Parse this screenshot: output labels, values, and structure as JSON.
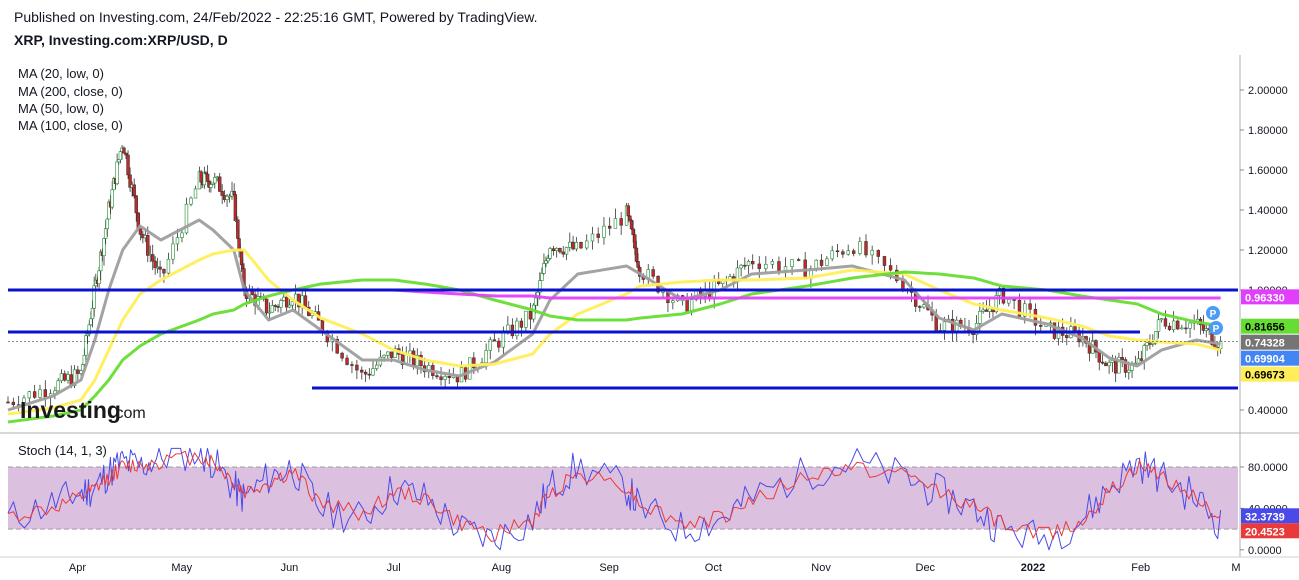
{
  "header": {
    "published": "Published on Investing.com, 24/Feb/2022 - 22:25:16 GMT, Powered by TradingView.",
    "symbol": "XRP, Investing.com:XRP/USD, D"
  },
  "watermark": {
    "text": "Investing",
    "suffix": ".com"
  },
  "legend": {
    "items": [
      {
        "label": "MA (20, low, 0)",
        "color": "#9e9e9e"
      },
      {
        "label": "MA (200, close, 0)",
        "color": "#e040fb"
      },
      {
        "label": "MA (50, low, 0)",
        "color": "#ffee58"
      },
      {
        "label": "MA (100, close, 0)",
        "color": "#66dd33"
      }
    ]
  },
  "stoch_label": "Stoch (14, 1, 3)",
  "colors": {
    "up": "#1b8a2e",
    "down": "#c62828",
    "level_line": "#0a12cc",
    "stoch_k": "#4a4ae8",
    "stoch_d": "#e83a3a",
    "stoch_band": "#dcc0e0",
    "ma20": "#9e9e9e",
    "ma50": "#ffee58",
    "ma100": "#66dd33",
    "ma200": "#e040fb"
  },
  "chart_data": [
    {
      "type": "line",
      "title": "XRP, Investing.com:XRP/USD, D",
      "x_axis": [
        "Apr",
        "May",
        "Jun",
        "Jul",
        "Aug",
        "Sep",
        "Oct",
        "Nov",
        "Dec",
        "2022",
        "Feb",
        "M"
      ],
      "y_ticks": [
        "2.00000",
        "1.80000",
        "1.60000",
        "1.40000",
        "1.20000",
        "1.00000",
        "0.40000"
      ],
      "ylim": [
        0.3,
        2.1
      ],
      "price_approx": {
        "x": [
          "2021-03-12",
          "2021-03-25",
          "2021-04-02",
          "2021-04-06",
          "2021-04-10",
          "2021-04-14",
          "2021-04-19",
          "2021-04-25",
          "2021-05-06",
          "2021-05-10",
          "2021-05-16",
          "2021-05-19",
          "2021-05-26",
          "2021-06-02",
          "2021-06-10",
          "2021-06-22",
          "2021-07-01",
          "2021-07-10",
          "2021-07-20",
          "2021-07-30",
          "2021-08-10",
          "2021-08-15",
          "2021-08-23",
          "2021-09-06",
          "2021-09-10",
          "2021-09-22",
          "2021-10-03",
          "2021-10-12",
          "2021-10-28",
          "2021-11-10",
          "2021-11-25",
          "2021-12-05",
          "2021-12-15",
          "2021-12-23",
          "2022-01-05",
          "2022-01-15",
          "2022-01-23",
          "2022-01-31",
          "2022-02-07",
          "2022-02-17",
          "2022-02-24"
        ],
        "close": [
          0.44,
          0.52,
          0.58,
          1.0,
          1.4,
          1.75,
          1.3,
          1.05,
          1.55,
          1.55,
          1.45,
          1.0,
          0.9,
          0.98,
          0.82,
          0.57,
          0.69,
          0.62,
          0.57,
          0.73,
          0.88,
          1.23,
          1.2,
          1.38,
          1.1,
          0.92,
          1.02,
          1.15,
          1.1,
          1.23,
          1.03,
          0.82,
          0.82,
          0.98,
          0.8,
          0.77,
          0.62,
          0.62,
          0.85,
          0.83,
          0.73
        ]
      },
      "moving_averages": [
        {
          "name": "MA (20, low, 0)",
          "values_approx": [
            0.4,
            0.47,
            0.55,
            0.75,
            1.0,
            1.2,
            1.32,
            1.25,
            1.35,
            1.3,
            1.2,
            1.0,
            0.85,
            0.9,
            0.8,
            0.65,
            0.65,
            0.6,
            0.57,
            0.64,
            0.78,
            0.95,
            1.08,
            1.12,
            1.08,
            0.95,
            1.0,
            1.08,
            1.1,
            1.12,
            1.05,
            0.86,
            0.8,
            0.88,
            0.83,
            0.76,
            0.66,
            0.62,
            0.7,
            0.75,
            0.73
          ]
        },
        {
          "name": "MA (50, low, 0)",
          "values_approx": [
            0.38,
            0.41,
            0.45,
            0.55,
            0.7,
            0.85,
            0.98,
            1.05,
            1.15,
            1.18,
            1.2,
            1.2,
            1.05,
            0.95,
            0.86,
            0.78,
            0.7,
            0.65,
            0.62,
            0.63,
            0.68,
            0.78,
            0.88,
            0.98,
            1.02,
            1.04,
            1.05,
            1.05,
            1.06,
            1.1,
            1.08,
            1.0,
            0.93,
            0.9,
            0.86,
            0.82,
            0.77,
            0.75,
            0.74,
            0.73,
            0.7
          ]
        },
        {
          "name": "MA (100, close, 0)",
          "values_approx": [
            0.34,
            0.37,
            0.4,
            0.47,
            0.55,
            0.65,
            0.72,
            0.78,
            0.85,
            0.88,
            0.9,
            0.93,
            0.97,
            1.0,
            1.03,
            1.05,
            1.05,
            1.03,
            1.0,
            0.95,
            0.9,
            0.87,
            0.85,
            0.85,
            0.86,
            0.88,
            0.93,
            0.98,
            1.02,
            1.06,
            1.09,
            1.08,
            1.06,
            1.02,
            1.0,
            0.97,
            0.95,
            0.93,
            0.88,
            0.84,
            0.82
          ]
        },
        {
          "name": "MA (200, close, 0)",
          "values_approx": [
            0.7,
            0.72,
            0.74,
            0.76,
            0.78,
            0.8,
            0.82,
            0.84,
            0.87,
            0.9,
            0.93,
            0.95,
            0.97,
            0.99,
            1.0,
            1.0,
            1.0,
            0.99,
            0.98,
            0.97,
            0.97,
            0.96,
            0.96,
            0.96,
            0.96,
            0.96,
            0.96,
            0.96,
            0.96,
            0.96,
            0.96,
            0.96,
            0.96,
            0.96,
            0.96,
            0.96,
            0.96,
            0.96,
            0.96,
            0.96,
            0.96
          ]
        }
      ],
      "horizontal_lines": [
        1.0,
        0.79,
        0.51
      ],
      "price_labels": [
        {
          "value": 0.9633,
          "text": "0.96330",
          "bg": "#e040fb",
          "fg": "#ffffff"
        },
        {
          "value": 0.81656,
          "text": "0.81656",
          "bg": "#66dd33",
          "fg": "#000000"
        },
        {
          "value": 0.74328,
          "text": "0.74328",
          "bg": "#757575",
          "fg": "#ffffff"
        },
        {
          "value": 0.69904,
          "text": "0.69904",
          "bg": "#4285f4",
          "fg": "#ffffff"
        },
        {
          "value": 0.69673,
          "text": "0.69673",
          "bg": "#ffee58",
          "fg": "#000000"
        }
      ],
      "markers": [
        "P",
        "P"
      ]
    },
    {
      "type": "line",
      "title": "Stoch (14, 1, 3)",
      "y_ticks": [
        "80.0000",
        "40.0000",
        "0.0000"
      ],
      "ylim": [
        -5,
        105
      ],
      "bands": [
        20,
        80
      ],
      "series": [
        {
          "name": "%K",
          "values_approx": [
            30,
            45,
            55,
            60,
            75,
            85,
            80,
            90,
            95,
            85,
            60,
            50,
            70,
            80,
            40,
            30,
            60,
            50,
            20,
            10,
            30,
            60,
            80,
            60,
            40,
            20,
            30,
            50,
            75,
            85,
            70,
            55,
            40,
            20,
            10,
            30,
            60,
            85,
            70,
            50,
            25
          ]
        },
        {
          "name": "%D",
          "values_approx": [
            32,
            40,
            50,
            58,
            70,
            80,
            82,
            86,
            90,
            85,
            65,
            55,
            65,
            75,
            45,
            35,
            55,
            50,
            25,
            15,
            28,
            55,
            75,
            62,
            45,
            25,
            30,
            48,
            70,
            80,
            72,
            58,
            42,
            25,
            15,
            28,
            55,
            80,
            72,
            52,
            28
          ]
        }
      ],
      "value_labels": [
        {
          "value": 32.3739,
          "text": "32.3739",
          "bg": "#4a4ae8",
          "fg": "#ffffff"
        },
        {
          "value": 20.4523,
          "text": "20.4523",
          "bg": "#e83a3a",
          "fg": "#ffffff"
        }
      ]
    }
  ]
}
